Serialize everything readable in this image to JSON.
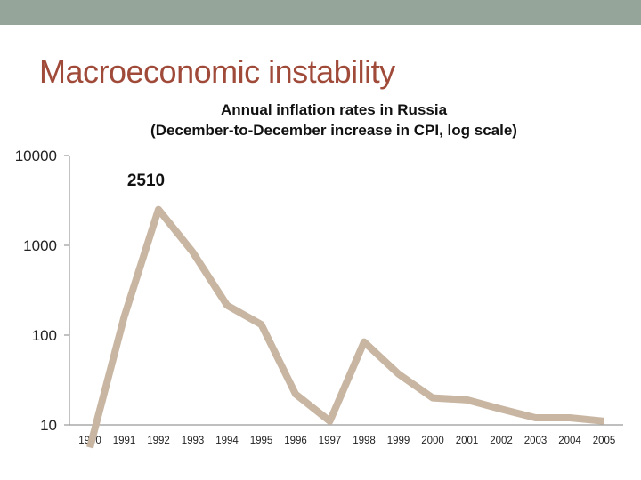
{
  "slide": {
    "title": "Macroeconomic instability"
  },
  "colors": {
    "band": "#96a59a",
    "title": "#a04a3a",
    "line": "#c8b6a2",
    "axis": "#999999"
  },
  "chart_data": {
    "type": "line",
    "title": "Annual inflation rates in Russia",
    "subtitle": "(December-to-December increase in CPI, log scale)",
    "xlabel": "",
    "ylabel": "",
    "yscale": "log",
    "ylim": [
      10,
      10000
    ],
    "y_ticks": [
      "10",
      "100",
      "1000",
      "10000"
    ],
    "categories": [
      "1990",
      "1991",
      "1992",
      "1993",
      "1994",
      "1995",
      "1996",
      "1997",
      "1998",
      "1999",
      "2000",
      "2001",
      "2002",
      "2003",
      "2004",
      "2005"
    ],
    "series": [
      {
        "name": "Inflation",
        "values": [
          5.6,
          160,
          2510,
          840,
          215,
          131,
          22,
          11,
          84,
          37,
          20,
          19,
          15,
          12,
          12,
          11
        ]
      }
    ],
    "annotations": [
      {
        "text": "2510",
        "category": "1992"
      }
    ],
    "grid": false,
    "legend": "none"
  }
}
